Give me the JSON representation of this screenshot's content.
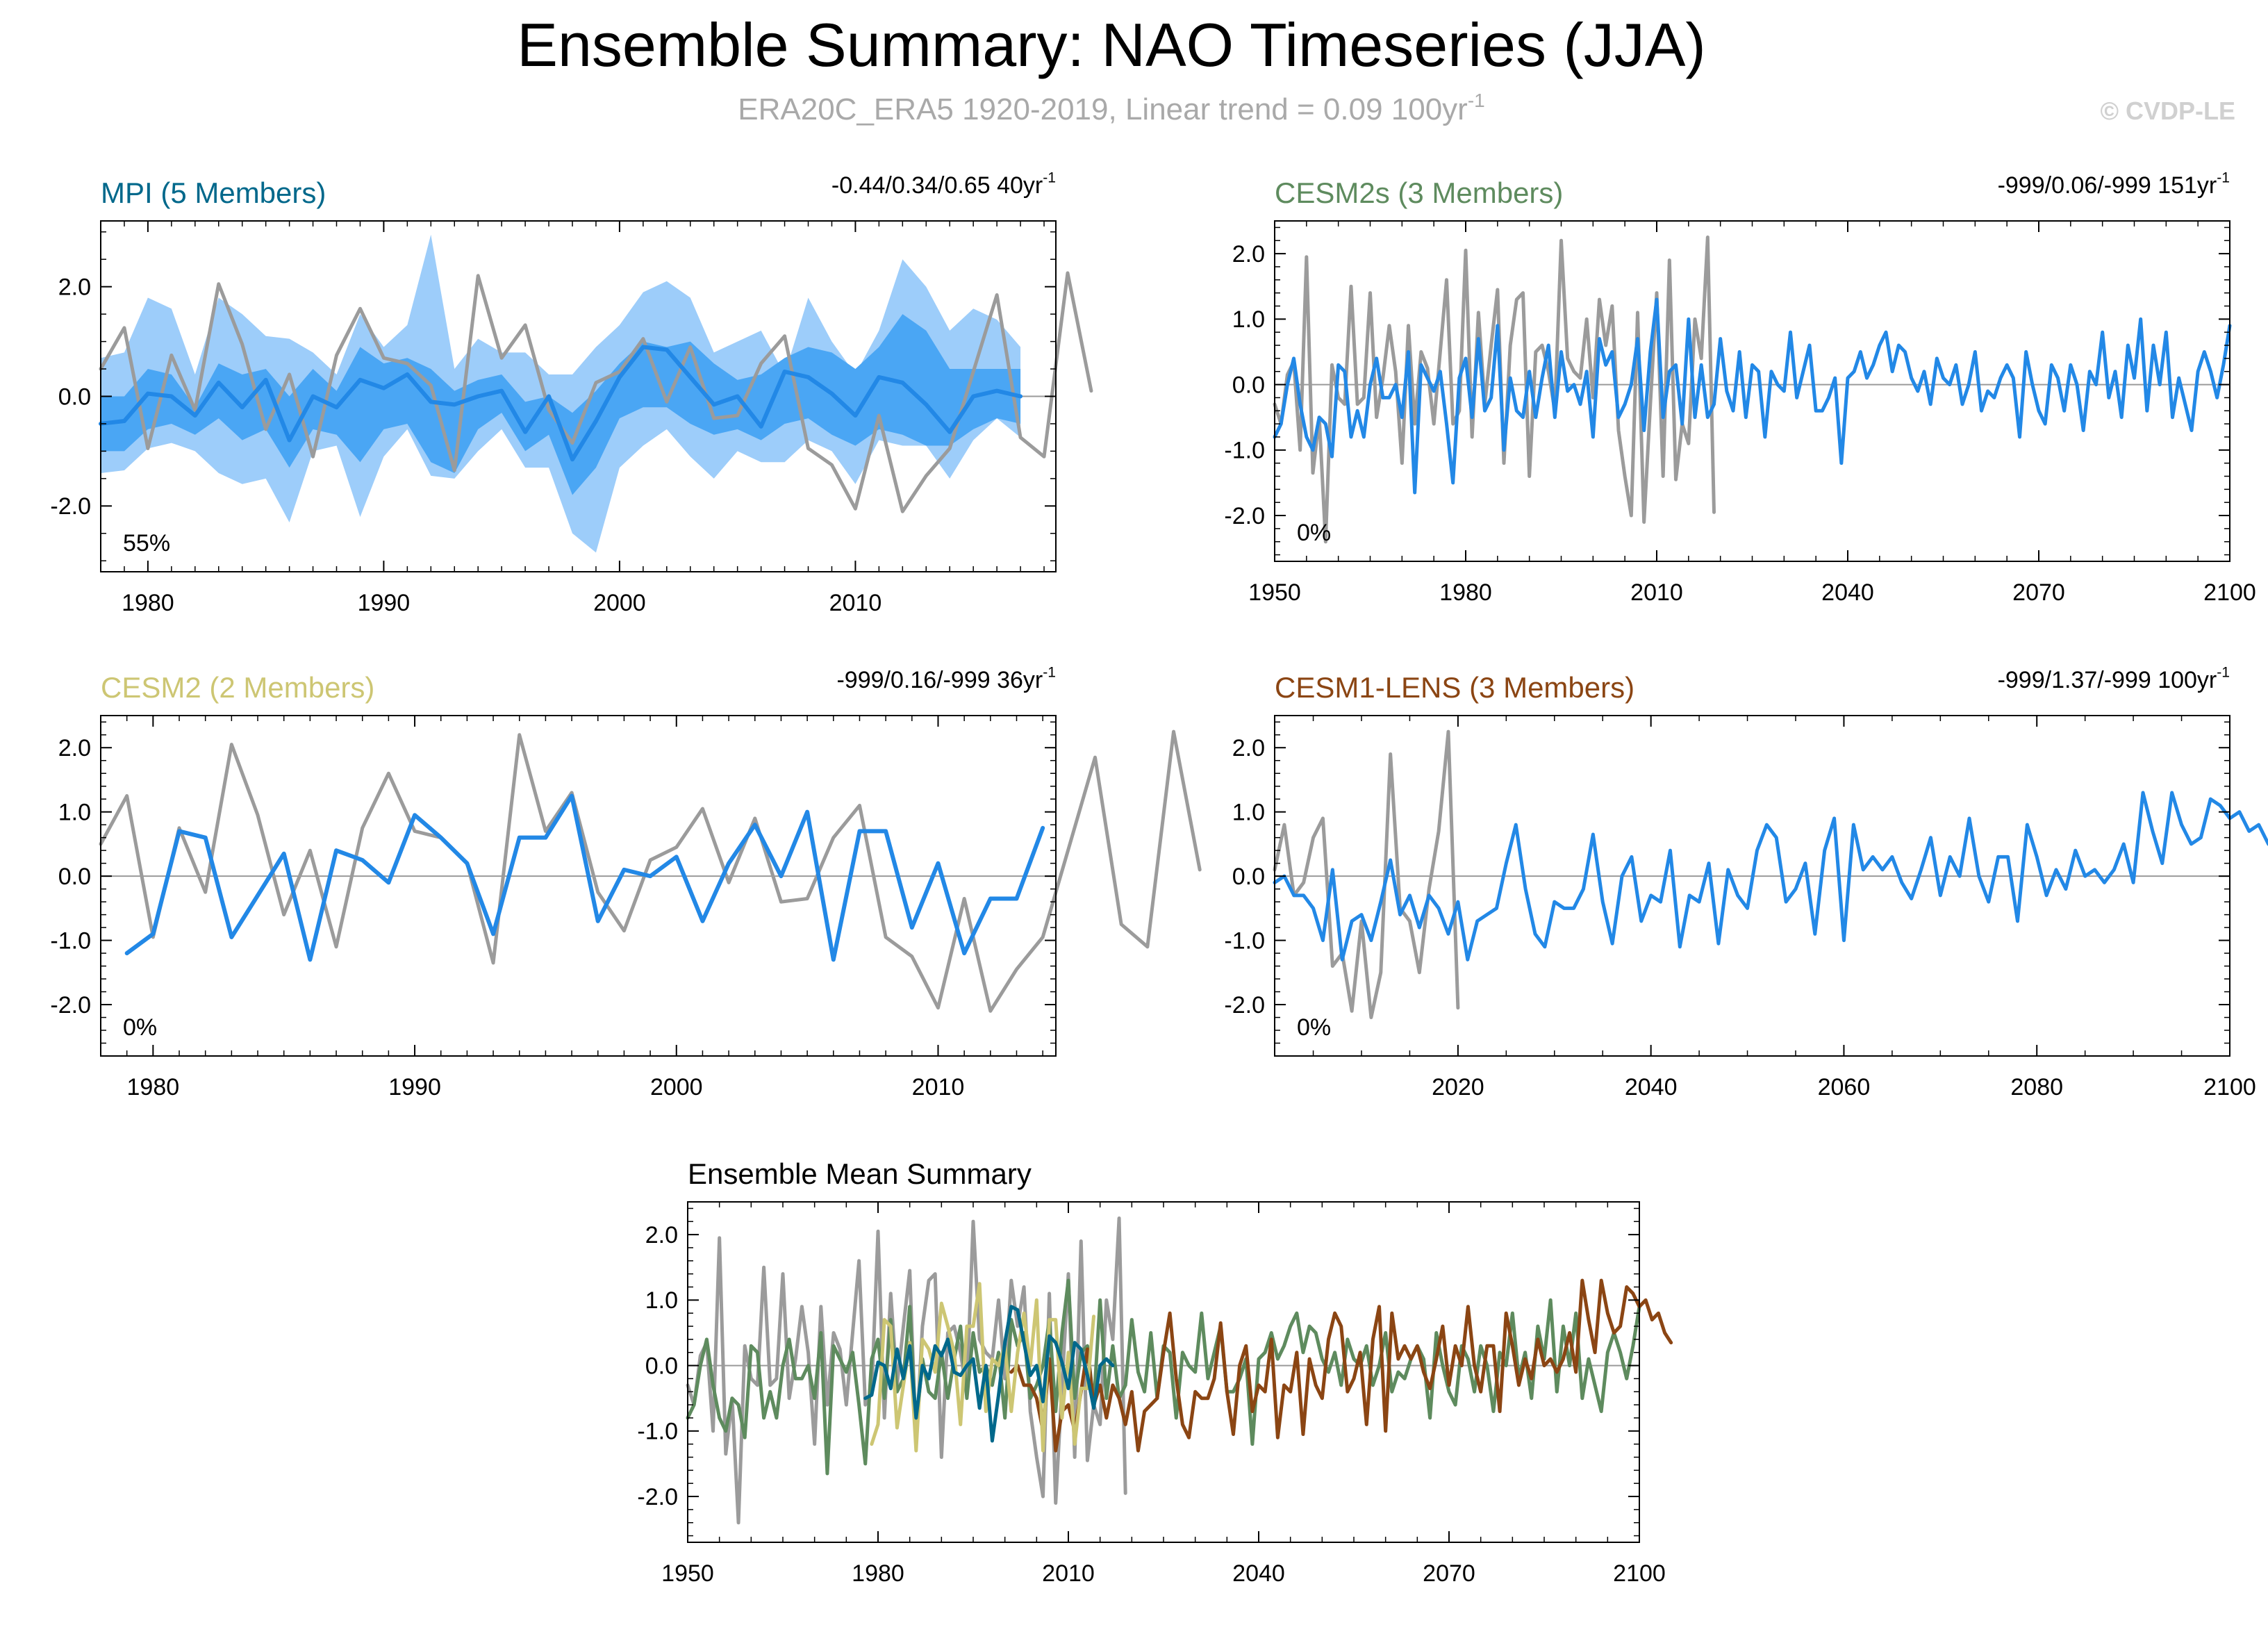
{
  "title": "Ensemble Summary: NAO Timeseries (JJA)",
  "subtitle_main": "ERA20C_ERA5 1920-2019, Linear trend = 0.09 100yr",
  "subtitle_sup": "-1",
  "copyright": "© CVDP-LE",
  "colors": {
    "obs": "#9b9b9b",
    "ens_mean": "#2288e6",
    "spread_light": "#9dcdfa",
    "spread_dark": "#4aa6f4",
    "mpi": "#00688b",
    "cesm2s": "#5e8b5e",
    "cesm2": "#cdc673",
    "cesm1": "#8b4513",
    "zero_line": "#9a9a9a",
    "axis": "#000000"
  },
  "chart_data": [
    {
      "id": "mpi",
      "type": "line",
      "title": "MPI (5 Members)",
      "title_color_key": "mpi",
      "stats": "-0.44/0.34/0.65 40yr",
      "stats_sup": "-1",
      "percent_label": "55%",
      "xlim": [
        1978,
        2018.5
      ],
      "ylim": [
        -3.2,
        3.2
      ],
      "xticks": [
        1980,
        1990,
        2000,
        2010
      ],
      "xtick_labels": [
        "1980",
        "1990",
        "2000",
        "2010"
      ],
      "yticks": [
        -2,
        0,
        2
      ],
      "ytick_labels": [
        "-2.0",
        "0.0",
        "2.0"
      ],
      "obs": {
        "start": 1978,
        "values": [
          0.5,
          1.25,
          -0.95,
          0.75,
          -0.25,
          2.05,
          0.95,
          -0.6,
          0.4,
          -1.1,
          0.75,
          1.6,
          0.7,
          0.6,
          0.2,
          -1.35,
          2.2,
          0.7,
          1.3,
          -0.25,
          -0.85,
          0.25,
          0.45,
          1.05,
          -0.1,
          0.9,
          -0.4,
          -0.35,
          0.6,
          1.1,
          -0.95,
          -1.25,
          -2.05,
          -0.35,
          -2.1,
          -1.45,
          -0.95,
          0.45,
          1.85,
          -0.75,
          -1.1,
          2.25,
          0.1
        ]
      },
      "ensemble_mean": {
        "start": 1978,
        "values": [
          -0.5,
          -0.45,
          0.05,
          0.0,
          -0.35,
          0.25,
          -0.2,
          0.3,
          -0.8,
          0.0,
          -0.2,
          0.3,
          0.15,
          0.4,
          -0.1,
          -0.15,
          0.0,
          0.1,
          -0.65,
          0.0,
          -1.15,
          -0.45,
          0.35,
          0.9,
          0.85,
          0.35,
          -0.15,
          0.0,
          -0.55,
          0.45,
          0.35,
          0.05,
          -0.35,
          0.35,
          0.25,
          -0.15,
          -0.65,
          0.0,
          0.1,
          0.0
        ]
      },
      "spread_outer_upper": {
        "start": 1978,
        "values": [
          0.7,
          0.8,
          1.8,
          1.6,
          0.4,
          1.8,
          1.5,
          1.1,
          1.05,
          0.8,
          0.4,
          1.5,
          0.9,
          1.3,
          2.95,
          0.5,
          1.05,
          0.8,
          0.8,
          0.4,
          0.4,
          0.9,
          1.3,
          1.9,
          2.1,
          1.8,
          0.8,
          1.0,
          1.2,
          0.4,
          1.8,
          1.0,
          0.4,
          1.2,
          2.5,
          2.0,
          1.2,
          1.6,
          1.4,
          0.9
        ]
      },
      "spread_inner_upper": {
        "start": 1978,
        "values": [
          0.0,
          0.0,
          0.5,
          0.4,
          -0.2,
          0.6,
          0.4,
          0.5,
          0.0,
          0.5,
          0.1,
          0.9,
          0.6,
          0.7,
          0.5,
          0.1,
          0.3,
          0.4,
          -0.1,
          0.0,
          -0.3,
          0.1,
          0.6,
          1.0,
          0.9,
          1.0,
          0.6,
          0.3,
          0.4,
          0.7,
          0.9,
          0.8,
          0.5,
          0.9,
          1.5,
          1.2,
          0.5,
          0.5,
          0.5,
          0.5
        ]
      },
      "spread_inner_lower": {
        "start": 1978,
        "values": [
          -1.0,
          -1.0,
          -0.6,
          -0.5,
          -0.7,
          -0.4,
          -0.8,
          -0.6,
          -1.3,
          -0.6,
          -0.7,
          -1.2,
          -0.6,
          -0.5,
          -1.2,
          -1.4,
          -0.6,
          -0.3,
          -1.0,
          -0.7,
          -1.8,
          -1.3,
          -0.4,
          -0.2,
          -0.2,
          -0.5,
          -0.7,
          -0.6,
          -0.8,
          -0.5,
          -0.4,
          -0.7,
          -0.9,
          -0.6,
          -0.7,
          -0.9,
          -0.9,
          -0.6,
          -0.4,
          -0.5
        ]
      },
      "spread_outer_lower": {
        "start": 1978,
        "values": [
          -1.4,
          -1.35,
          -0.95,
          -0.85,
          -1.0,
          -1.4,
          -1.6,
          -1.5,
          -2.3,
          -1.0,
          -0.9,
          -2.2,
          -1.1,
          -0.6,
          -1.45,
          -1.5,
          -1.0,
          -0.6,
          -1.3,
          -1.3,
          -2.5,
          -2.85,
          -1.3,
          -0.9,
          -0.6,
          -1.1,
          -1.5,
          -1.0,
          -1.2,
          -1.2,
          -0.8,
          -1.0,
          -1.6,
          -0.8,
          -0.9,
          -0.9,
          -1.5,
          -0.8,
          -0.4,
          -0.75
        ]
      }
    },
    {
      "id": "cesm2s",
      "type": "line",
      "title": "CESM2s (3 Members)",
      "title_color_key": "cesm2s",
      "stats": "-999/0.06/-999 151yr",
      "stats_sup": "-1",
      "percent_label": "0%",
      "xlim": [
        1950,
        2100
      ],
      "ylim": [
        -2.7,
        2.5
      ],
      "xticks": [
        1950,
        1980,
        2010,
        2040,
        2070,
        2100
      ],
      "xtick_labels": [
        "1950",
        "1980",
        "2010",
        "2040",
        "2070",
        "2100"
      ],
      "yticks": [
        -2,
        -1,
        0,
        1,
        2
      ],
      "ytick_labels": [
        "-2.0",
        "-1.0",
        "0.0",
        "1.0",
        "2.0"
      ],
      "obs": {
        "start": 1950,
        "values": [
          -0.3,
          -0.6,
          0.15,
          0.35,
          -1.0,
          1.95,
          -1.35,
          -0.5,
          -2.4,
          0.3,
          -0.2,
          -0.3,
          1.5,
          -0.3,
          -0.2,
          1.4,
          -0.5,
          0.1,
          0.9,
          0.2,
          -1.2,
          0.9,
          -0.6,
          0.5,
          0.25,
          -0.6,
          0.5,
          1.6,
          -0.6,
          -0.4,
          2.05,
          -0.8,
          1.1,
          -0.3,
          0.6,
          1.45,
          -1.2,
          0.6,
          1.3,
          1.4,
          -1.4,
          0.5,
          0.6,
          0.2,
          -0.4,
          2.2,
          0.4,
          0.2,
          0.1,
          1.0,
          -0.2,
          1.3,
          0.6,
          1.2,
          -0.7,
          -1.4,
          -2.0,
          1.1,
          -2.1,
          -0.3,
          1.4,
          -1.4,
          1.9,
          -1.45,
          -0.6,
          -0.9,
          1.0,
          0.4,
          2.25,
          -1.95
        ]
      },
      "ensemble_mean": {
        "start": 1950,
        "values": [
          -0.8,
          -0.6,
          0.0,
          0.4,
          -0.3,
          -0.8,
          -1.0,
          -0.5,
          -0.6,
          -1.1,
          0.3,
          0.2,
          -0.8,
          -0.4,
          -0.8,
          0.0,
          0.4,
          -0.2,
          -0.2,
          0.0,
          -0.5,
          0.5,
          -1.65,
          0.3,
          0.1,
          -0.1,
          0.2,
          -0.6,
          -1.5,
          0.1,
          0.4,
          -0.5,
          0.7,
          -0.4,
          -0.2,
          0.9,
          -1.0,
          0.1,
          -0.4,
          -0.5,
          0.2,
          -0.5,
          0.1,
          0.6,
          -0.5,
          0.5,
          -0.1,
          0.0,
          -0.3,
          0.2,
          -0.8,
          0.7,
          0.3,
          0.5,
          -0.5,
          -0.3,
          0.0,
          0.7,
          -0.7,
          0.5,
          1.3,
          -0.5,
          0.2,
          0.3,
          -0.6,
          1.0,
          -0.5,
          0.3,
          -0.5,
          -0.3,
          0.7,
          -0.1,
          -0.4,
          0.5,
          -0.5,
          0.3,
          0.2,
          -0.8,
          0.2,
          0.0,
          -0.1,
          0.8,
          -0.2,
          0.2,
          0.6,
          -0.4,
          -0.4,
          -0.2,
          0.1,
          -1.2,
          0.1,
          0.2,
          0.5,
          0.1,
          0.3,
          0.6,
          0.8,
          0.2,
          0.6,
          0.5,
          0.1,
          -0.1,
          0.2,
          -0.3,
          0.4,
          0.1,
          0.0,
          0.3,
          -0.3,
          0.0,
          0.5,
          -0.4,
          -0.1,
          -0.2,
          0.1,
          0.3,
          0.1,
          -0.8,
          0.5,
          0.0,
          -0.4,
          -0.6,
          0.3,
          0.1,
          -0.4,
          0.3,
          0.0,
          -0.7,
          0.2,
          0.0,
          0.8,
          -0.2,
          0.2,
          -0.5,
          0.6,
          0.1,
          1.0,
          -0.4,
          0.6,
          0.0,
          0.8,
          -0.5,
          0.1,
          -0.3,
          -0.7,
          0.2,
          0.5,
          0.2,
          -0.2,
          0.3,
          0.9
        ]
      }
    },
    {
      "id": "cesm2",
      "type": "line",
      "title": "CESM2 (2 Members)",
      "title_color_key": "cesm2",
      "stats": "-999/0.16/-999 36yr",
      "stats_sup": "-1",
      "percent_label": "0%",
      "xlim": [
        1978,
        2014.5
      ],
      "ylim": [
        -2.8,
        2.5
      ],
      "xticks": [
        1980,
        1990,
        2000,
        2010
      ],
      "xtick_labels": [
        "1980",
        "1990",
        "2000",
        "2010"
      ],
      "yticks": [
        -2,
        -1,
        0,
        1,
        2
      ],
      "ytick_labels": [
        "-2.0",
        "-1.0",
        "0.0",
        "1.0",
        "2.0"
      ],
      "obs": {
        "start": 1978,
        "values": [
          0.5,
          1.25,
          -0.95,
          0.75,
          -0.25,
          2.05,
          0.95,
          -0.6,
          0.4,
          -1.1,
          0.75,
          1.6,
          0.7,
          0.6,
          0.2,
          -1.35,
          2.2,
          0.7,
          1.3,
          -0.25,
          -0.85,
          0.25,
          0.45,
          1.05,
          -0.1,
          0.9,
          -0.4,
          -0.35,
          0.6,
          1.1,
          -0.95,
          -1.25,
          -2.05,
          -0.35,
          -2.1,
          -1.45,
          -0.95,
          0.45,
          1.85,
          -0.75,
          -1.1,
          2.25,
          0.1
        ]
      },
      "ensemble_mean": {
        "start": 1979,
        "values": [
          -1.2,
          -0.9,
          0.7,
          0.6,
          -0.95,
          -0.3,
          0.35,
          -1.3,
          0.4,
          0.25,
          -0.1,
          0.95,
          0.6,
          0.2,
          -0.9,
          0.6,
          0.6,
          1.25,
          -0.7,
          0.1,
          0.0,
          0.3,
          -0.7,
          0.2,
          0.8,
          0.0,
          1.0,
          -1.3,
          0.7,
          0.7,
          -0.8,
          0.2,
          -1.2,
          -0.35,
          -0.35,
          0.75
        ]
      }
    },
    {
      "id": "cesm1",
      "type": "line",
      "title": "CESM1-LENS (3 Members)",
      "title_color_key": "cesm1",
      "stats": "-999/1.37/-999 100yr",
      "stats_sup": "-1",
      "percent_label": "0%",
      "xlim": [
        2001,
        2100
      ],
      "ylim": [
        -2.8,
        2.5
      ],
      "xticks": [
        2020,
        2040,
        2060,
        2080,
        2100
      ],
      "xtick_labels": [
        "2020",
        "2040",
        "2060",
        "2080",
        "2100"
      ],
      "yticks": [
        -2,
        -1,
        0,
        1,
        2
      ],
      "ytick_labels": [
        "-2.0",
        "-1.0",
        "0.0",
        "1.0",
        "2.0"
      ],
      "obs": {
        "start": 2001,
        "values": [
          0.1,
          0.8,
          -0.3,
          -0.1,
          0.6,
          0.9,
          -1.4,
          -1.2,
          -2.1,
          -0.7,
          -2.2,
          -1.5,
          1.9,
          -0.5,
          -0.7,
          -1.5,
          -0.2,
          0.7,
          2.25,
          -2.05
        ]
      },
      "ensemble_mean": {
        "start": 2001,
        "values": [
          -0.1,
          0.0,
          -0.3,
          -0.3,
          -0.5,
          -1.0,
          0.1,
          -1.3,
          -0.7,
          -0.6,
          -1.0,
          -0.4,
          0.25,
          -0.6,
          -0.3,
          -0.8,
          -0.3,
          -0.5,
          -0.9,
          -0.4,
          -1.3,
          -0.7,
          -0.6,
          -0.5,
          0.2,
          0.8,
          -0.2,
          -0.9,
          -1.1,
          -0.4,
          -0.5,
          -0.5,
          -0.2,
          0.65,
          -0.4,
          -1.05,
          0.0,
          0.3,
          -0.7,
          -0.3,
          -0.4,
          0.4,
          -1.1,
          -0.3,
          -0.4,
          0.2,
          -1.05,
          0.1,
          -0.3,
          -0.5,
          0.4,
          0.8,
          0.6,
          -0.4,
          -0.2,
          0.2,
          -0.9,
          0.4,
          0.9,
          -1.0,
          0.8,
          0.1,
          0.3,
          0.1,
          0.3,
          -0.1,
          -0.35,
          0.1,
          0.6,
          -0.3,
          0.3,
          0.0,
          0.9,
          0.0,
          -0.4,
          0.3,
          0.3,
          -0.7,
          0.8,
          0.3,
          -0.3,
          0.1,
          -0.2,
          0.4,
          0.0,
          0.1,
          -0.1,
          0.1,
          0.5,
          -0.1,
          1.3,
          0.7,
          0.2,
          1.3,
          0.8,
          0.5,
          0.6,
          1.2,
          1.1,
          0.9,
          1.0,
          0.7,
          0.8,
          0.5,
          0.35
        ]
      }
    },
    {
      "id": "ensemble_mean_summary",
      "type": "line",
      "title": "Ensemble Mean Summary",
      "xlim": [
        1950,
        2100
      ],
      "ylim": [
        -2.7,
        2.5
      ],
      "xticks": [
        1950,
        1980,
        2010,
        2040,
        2070,
        2100
      ],
      "xtick_labels": [
        "1950",
        "1980",
        "2010",
        "2040",
        "2070",
        "2100"
      ],
      "yticks": [
        -2,
        -1,
        0,
        1,
        2
      ],
      "ytick_labels": [
        "-2.0",
        "-1.0",
        "0.0",
        "1.0",
        "2.0"
      ],
      "series_refs": [
        "obs_cesm2s",
        "cesm2s",
        "cesm1",
        "cesm2",
        "mpi"
      ],
      "series_colors": [
        "obs",
        "cesm2s",
        "cesm1",
        "cesm2",
        "mpi"
      ]
    }
  ]
}
